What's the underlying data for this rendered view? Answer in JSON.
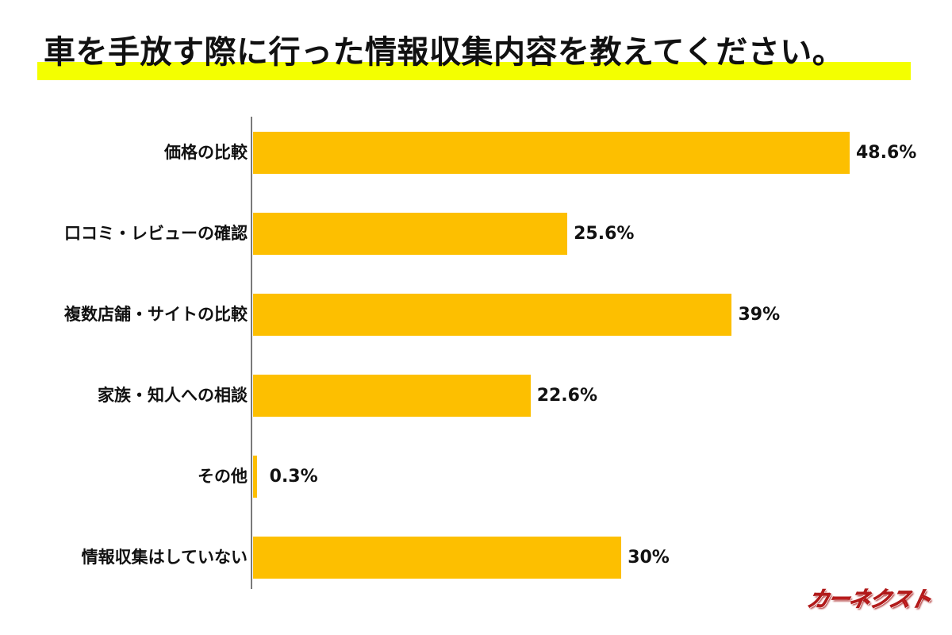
{
  "title": "車を手放す際に行った情報収集内容を教えてください。",
  "colors": {
    "bar": "#fdbf00",
    "title_highlight": "#f4ff00",
    "axis": "#7a7a7a",
    "text": "#111111",
    "logo": "#e3262b"
  },
  "logo": {
    "text": "カーネクスト"
  },
  "chart_data": {
    "type": "bar",
    "orientation": "horizontal",
    "title": "車を手放す際に行った情報収集内容を教えてください。",
    "xlabel": "",
    "ylabel": "",
    "grid": false,
    "legend": null,
    "categories": [
      "価格の比較",
      "口コミ・レビューの確認",
      "複数店舗・サイトの比較",
      "家族・知人への相談",
      "その他",
      "情報収集はしていない"
    ],
    "values": [
      48.6,
      25.6,
      39,
      22.6,
      0.3,
      30
    ],
    "value_labels": [
      "48.6%",
      "25.6%",
      "39%",
      "22.6%",
      "0.3%",
      "30%"
    ],
    "unit": "%"
  }
}
